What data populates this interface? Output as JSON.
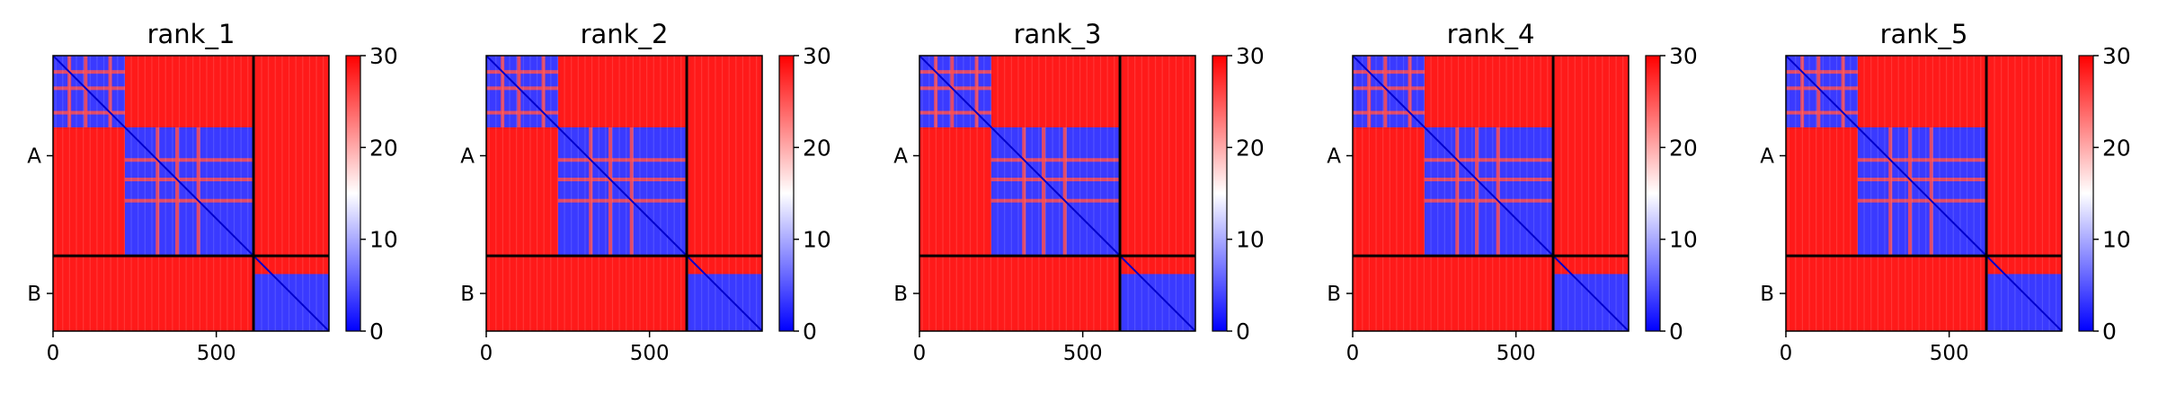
{
  "chart_data": [
    {
      "type": "heatmap",
      "title": "rank_1",
      "x_ticks": [
        0,
        500
      ],
      "xlim": [
        0,
        845
      ],
      "y_tick_labels": [
        "A",
        "B"
      ],
      "chain_boundary": 614,
      "colorbar": {
        "min": 0,
        "max": 30,
        "ticks": [
          0,
          10,
          20,
          30
        ],
        "cmap": "bwr"
      },
      "low_blocks": [
        [
          0,
          220
        ],
        [
          220,
          614
        ],
        [
          614,
          845
        ]
      ],
      "stripes": [
        50,
        100,
        175,
        320,
        380,
        445
      ]
    },
    {
      "type": "heatmap",
      "title": "rank_2",
      "x_ticks": [
        0,
        500
      ],
      "xlim": [
        0,
        845
      ],
      "y_tick_labels": [
        "A",
        "B"
      ],
      "chain_boundary": 614,
      "colorbar": {
        "min": 0,
        "max": 30,
        "ticks": [
          0,
          10,
          20,
          30
        ],
        "cmap": "bwr"
      },
      "low_blocks": [
        [
          0,
          220
        ],
        [
          220,
          614
        ],
        [
          614,
          845
        ]
      ],
      "stripes": [
        50,
        100,
        175,
        320,
        380,
        445
      ]
    },
    {
      "type": "heatmap",
      "title": "rank_3",
      "x_ticks": [
        0,
        500
      ],
      "xlim": [
        0,
        845
      ],
      "y_tick_labels": [
        "A",
        "B"
      ],
      "chain_boundary": 614,
      "colorbar": {
        "min": 0,
        "max": 30,
        "ticks": [
          0,
          10,
          20,
          30
        ],
        "cmap": "bwr"
      },
      "low_blocks": [
        [
          0,
          220
        ],
        [
          220,
          614
        ],
        [
          614,
          845
        ]
      ],
      "stripes": [
        50,
        100,
        175,
        320,
        380,
        445
      ]
    },
    {
      "type": "heatmap",
      "title": "rank_4",
      "x_ticks": [
        0,
        500
      ],
      "xlim": [
        0,
        845
      ],
      "y_tick_labels": [
        "A",
        "B"
      ],
      "chain_boundary": 614,
      "colorbar": {
        "min": 0,
        "max": 30,
        "ticks": [
          0,
          10,
          20,
          30
        ],
        "cmap": "bwr"
      },
      "low_blocks": [
        [
          0,
          220
        ],
        [
          220,
          614
        ],
        [
          614,
          845
        ]
      ],
      "stripes": [
        50,
        100,
        175,
        320,
        380,
        445
      ]
    },
    {
      "type": "heatmap",
      "title": "rank_5",
      "x_ticks": [
        0,
        500
      ],
      "xlim": [
        0,
        845
      ],
      "y_tick_labels": [
        "A",
        "B"
      ],
      "chain_boundary": 614,
      "colorbar": {
        "min": 0,
        "max": 30,
        "ticks": [
          0,
          10,
          20,
          30
        ],
        "cmap": "bwr"
      },
      "low_blocks": [
        [
          0,
          220
        ],
        [
          220,
          614
        ],
        [
          614,
          845
        ]
      ],
      "stripes": [
        50,
        100,
        175,
        320,
        380,
        445
      ]
    }
  ]
}
